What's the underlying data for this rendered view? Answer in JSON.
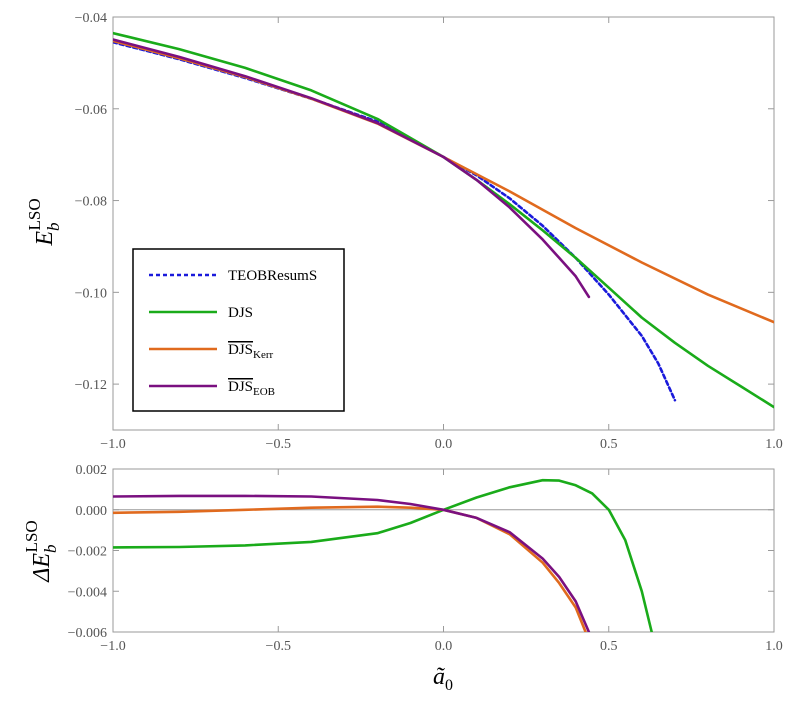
{
  "chart_data": [
    {
      "type": "line",
      "id": "top",
      "ylabel": "E_b^LSO",
      "ylabel_main": "E",
      "ylabel_sub": "b",
      "ylabel_sup": "LSO",
      "xlim": [
        -1.0,
        1.0
      ],
      "ylim": [
        -0.13,
        -0.04
      ],
      "x_ticks": [
        -1.0,
        -0.5,
        0.0,
        0.5,
        1.0
      ],
      "x_tick_labels": [
        "−1.0",
        "−0.5",
        "0.0",
        "0.5",
        "1.0"
      ],
      "y_ticks": [
        -0.04,
        -0.06,
        -0.08,
        -0.1,
        -0.12
      ],
      "y_tick_labels": [
        "−0.04",
        "−0.06",
        "−0.08",
        "−0.10",
        "−0.12"
      ],
      "legend_position": "left",
      "series": [
        {
          "key": "teob",
          "name": "TEOBResumS",
          "name_main": "TEOBResumS",
          "name_sub": "",
          "overline": false,
          "color": "#1a1adb",
          "dash": "4,3",
          "x": [
            -1.0,
            -0.8,
            -0.6,
            -0.4,
            -0.2,
            0.0,
            0.1,
            0.2,
            0.3,
            0.4,
            0.5,
            0.6,
            0.65,
            0.7
          ],
          "y": [
            -0.0455,
            -0.0492,
            -0.0533,
            -0.0578,
            -0.0628,
            -0.0705,
            -0.0745,
            -0.0795,
            -0.0855,
            -0.0925,
            -0.1005,
            -0.1095,
            -0.1155,
            -0.1235
          ]
        },
        {
          "key": "djs",
          "name": "DJS",
          "name_main": "DJS",
          "name_sub": "",
          "overline": false,
          "color": "#1aab1a",
          "dash": "",
          "x": [
            -1.0,
            -0.8,
            -0.6,
            -0.4,
            -0.2,
            0.0,
            0.1,
            0.2,
            0.3,
            0.4,
            0.5,
            0.6,
            0.7,
            0.8,
            0.9,
            1.0
          ],
          "y": [
            -0.0435,
            -0.047,
            -0.0511,
            -0.056,
            -0.0622,
            -0.0705,
            -0.0755,
            -0.0808,
            -0.0865,
            -0.0925,
            -0.099,
            -0.1055,
            -0.111,
            -0.116,
            -0.1205,
            -0.125
          ]
        },
        {
          "key": "djs_kerr",
          "name": "DJS_Kerr",
          "name_main": "DJS",
          "name_sub": "Kerr",
          "overline": true,
          "color": "#e06a1e",
          "dash": "",
          "x": [
            -1.0,
            -0.8,
            -0.6,
            -0.4,
            -0.2,
            0.0,
            0.2,
            0.4,
            0.6,
            0.8,
            1.0
          ],
          "y": [
            -0.0452,
            -0.049,
            -0.0531,
            -0.0578,
            -0.0632,
            -0.0705,
            -0.078,
            -0.086,
            -0.0935,
            -0.1005,
            -0.1065
          ]
        },
        {
          "key": "djs_eob",
          "name": "DJS_EOB",
          "name_main": "DJS",
          "name_sub": "EOB",
          "overline": true,
          "color": "#7a1080",
          "dash": "",
          "x": [
            -1.0,
            -0.8,
            -0.6,
            -0.4,
            -0.2,
            0.0,
            0.1,
            0.2,
            0.3,
            0.35,
            0.4,
            0.44
          ],
          "y": [
            -0.0449,
            -0.0487,
            -0.0529,
            -0.0577,
            -0.0631,
            -0.0705,
            -0.0755,
            -0.0815,
            -0.0885,
            -0.0925,
            -0.0965,
            -0.101
          ]
        }
      ]
    },
    {
      "type": "line",
      "id": "bottom",
      "xlabel": "ã₀",
      "xlabel_main": "ã",
      "xlabel_sub": "0",
      "ylabel": "ΔE_b^LSO",
      "ylabel_main": "ΔE",
      "ylabel_sub": "b",
      "ylabel_sup": "LSO",
      "xlim": [
        -1.0,
        1.0
      ],
      "ylim": [
        -0.006,
        0.002
      ],
      "x_ticks": [
        -1.0,
        -0.5,
        0.0,
        0.5,
        1.0
      ],
      "x_tick_labels": [
        "−1.0",
        "−0.5",
        "0.0",
        "0.5",
        "1.0"
      ],
      "y_ticks": [
        0.002,
        0.0,
        -0.002,
        -0.004,
        -0.006
      ],
      "y_tick_labels": [
        "0.002",
        "0.000",
        "−0.002",
        "−0.004",
        "−0.006"
      ],
      "reference_line": 0.0,
      "series": [
        {
          "key": "djs",
          "name": "DJS",
          "color": "#1aab1a",
          "x": [
            -1.0,
            -0.8,
            -0.6,
            -0.4,
            -0.2,
            -0.1,
            0.0,
            0.1,
            0.2,
            0.3,
            0.35,
            0.4,
            0.45,
            0.5,
            0.55,
            0.6,
            0.63
          ],
          "y": [
            -0.00185,
            -0.00183,
            -0.00175,
            -0.00158,
            -0.00115,
            -0.00065,
            0.0,
            0.0006,
            0.0011,
            0.00145,
            0.00143,
            0.0012,
            0.0008,
            0.0,
            -0.0015,
            -0.004,
            -0.006
          ]
        },
        {
          "key": "djs_kerr",
          "name": "DJS_Kerr",
          "color": "#e06a1e",
          "x": [
            -1.0,
            -0.8,
            -0.6,
            -0.4,
            -0.2,
            -0.1,
            0.0,
            0.1,
            0.2,
            0.3,
            0.35,
            0.4,
            0.43
          ],
          "y": [
            -0.00015,
            -0.0001,
            0.0,
            0.0001,
            0.00015,
            0.0001,
            0.0,
            -0.0004,
            -0.0012,
            -0.0026,
            -0.0036,
            -0.0048,
            -0.006
          ]
        },
        {
          "key": "djs_eob",
          "name": "DJS_EOB",
          "color": "#7a1080",
          "x": [
            -1.0,
            -0.8,
            -0.6,
            -0.4,
            -0.2,
            -0.1,
            0.0,
            0.1,
            0.2,
            0.3,
            0.35,
            0.4,
            0.44
          ],
          "y": [
            0.00065,
            0.00068,
            0.00068,
            0.00065,
            0.00048,
            0.00028,
            0.0,
            -0.0004,
            -0.0011,
            -0.0024,
            -0.0033,
            -0.0045,
            -0.006
          ]
        }
      ]
    }
  ]
}
